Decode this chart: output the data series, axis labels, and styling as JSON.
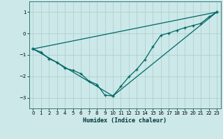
{
  "xlabel": "Humidex (Indice chaleur)",
  "bg_color": "#cce8e8",
  "grid_color": "#aacccc",
  "line_color": "#006666",
  "xlim": [
    -0.5,
    23.5
  ],
  "ylim": [
    -3.5,
    1.5
  ],
  "xticks": [
    0,
    1,
    2,
    3,
    4,
    5,
    6,
    7,
    8,
    9,
    10,
    11,
    12,
    13,
    14,
    15,
    16,
    17,
    18,
    19,
    20,
    21,
    22,
    23
  ],
  "yticks": [
    -3,
    -2,
    -1,
    0,
    1
  ],
  "line1_x": [
    0,
    1,
    2,
    3,
    4,
    5,
    6,
    7,
    8,
    9,
    10,
    11,
    12,
    13,
    14,
    15,
    16,
    17,
    18,
    19,
    20,
    21,
    22,
    23
  ],
  "line1_y": [
    -0.72,
    -0.87,
    -1.18,
    -1.35,
    -1.62,
    -1.72,
    -1.88,
    -2.22,
    -2.38,
    -2.88,
    -2.92,
    -2.47,
    -2.02,
    -1.67,
    -1.22,
    -0.62,
    -0.08,
    0.02,
    0.15,
    0.27,
    0.37,
    0.47,
    0.77,
    1.0
  ],
  "line2_x": [
    0,
    23
  ],
  "line2_y": [
    -0.72,
    1.0
  ],
  "line3_x": [
    0,
    3,
    10,
    23
  ],
  "line3_y": [
    -0.72,
    -1.35,
    -2.92,
    1.0
  ]
}
